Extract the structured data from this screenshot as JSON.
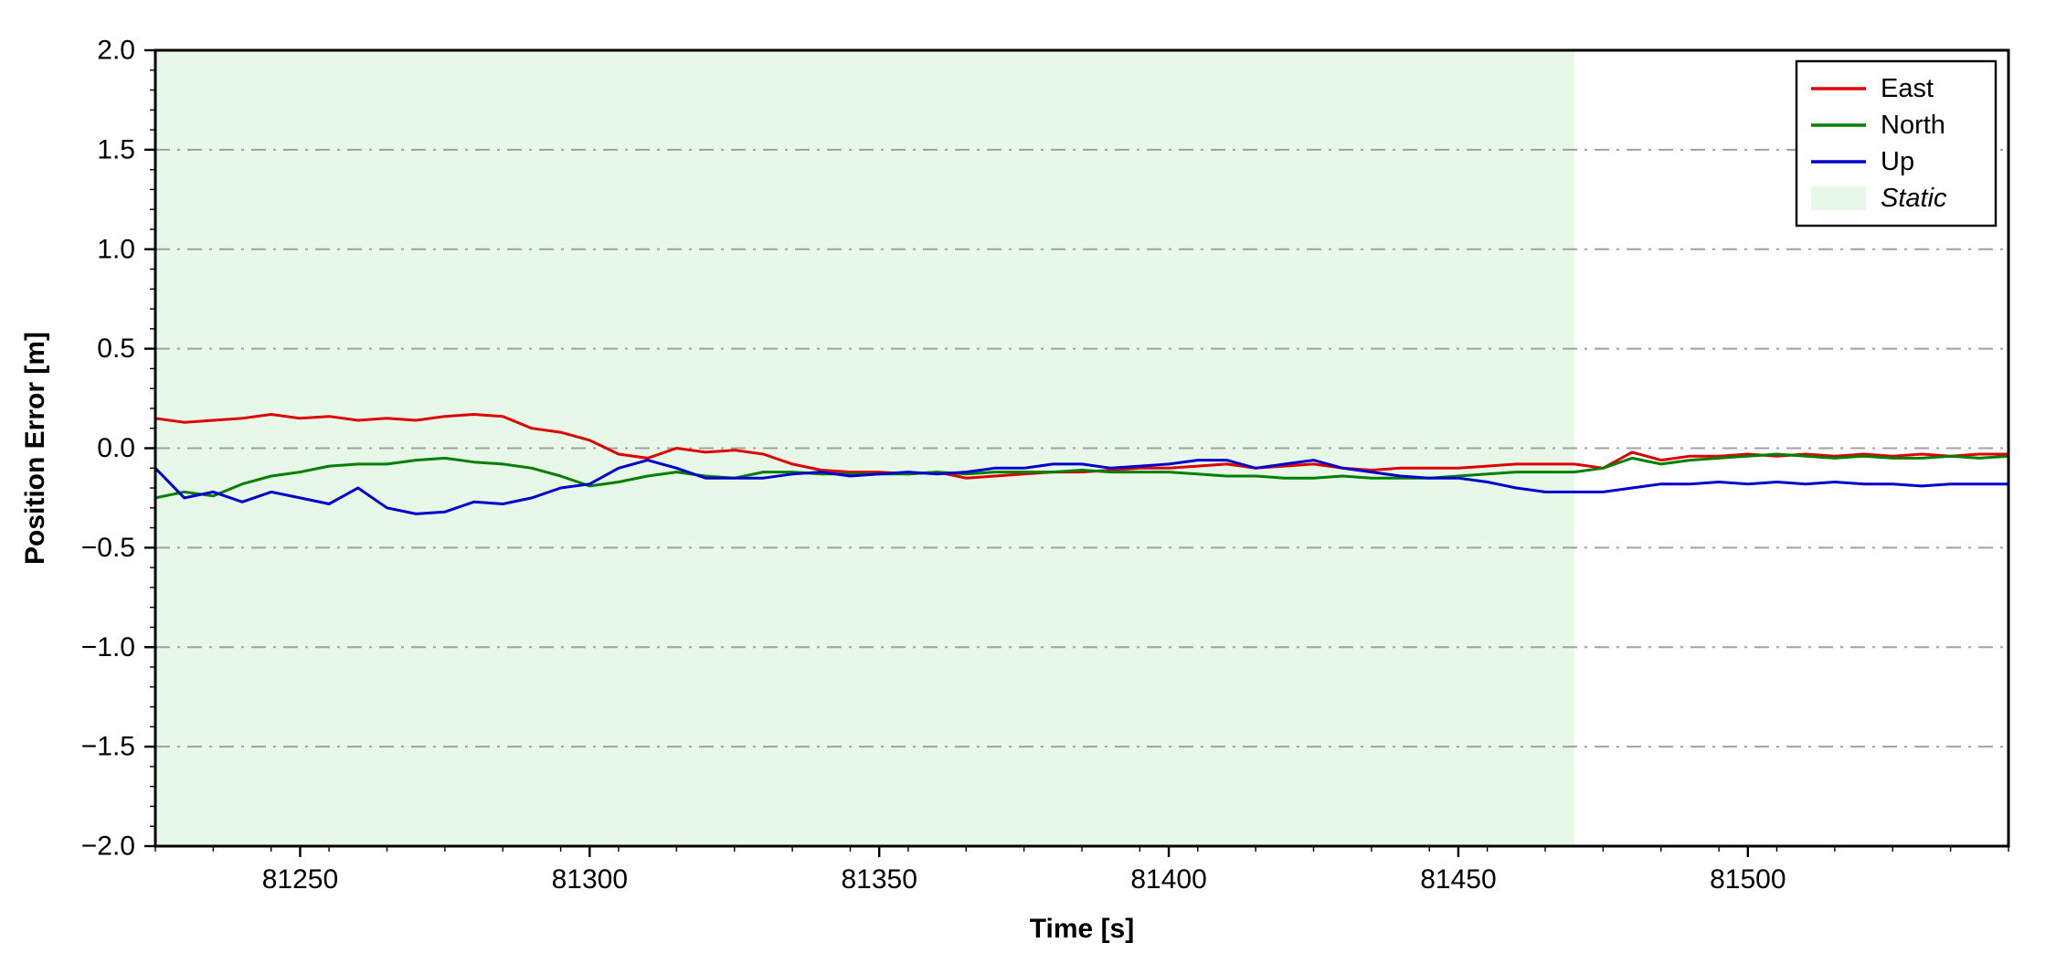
{
  "page": {
    "background": "#ffffff"
  },
  "chart_data": {
    "type": "line",
    "title": "",
    "xlabel": "Time [s]",
    "ylabel": "Position Error [m]",
    "xlim": [
      81225,
      81545
    ],
    "ylim": [
      -2.0,
      2.0
    ],
    "grid": {
      "on": true,
      "style": "dash-dot",
      "color": "#a0a0a0",
      "values": [
        -1.5,
        -1.0,
        -0.5,
        0.0,
        0.5,
        1.0,
        1.5
      ]
    },
    "xticks": {
      "values": [
        81250,
        81300,
        81350,
        81400,
        81450,
        81500
      ],
      "labels": [
        "81250",
        "81300",
        "81350",
        "81400",
        "81450",
        "81500"
      ],
      "minor_step": 10
    },
    "yticks": {
      "values": [
        2.0,
        1.5,
        1.0,
        0.5,
        0.0,
        -0.5,
        -1.0,
        -1.5,
        -2.0
      ],
      "labels": [
        "2.0",
        "1.5",
        "1.0",
        "0.5",
        "0.0",
        "−0.5",
        "−1.0",
        "−1.5",
        "−2.0"
      ],
      "minor_step": 0.1
    },
    "x": [
      81225,
      81230,
      81235,
      81240,
      81245,
      81250,
      81255,
      81260,
      81265,
      81270,
      81275,
      81280,
      81285,
      81290,
      81295,
      81300,
      81305,
      81310,
      81315,
      81320,
      81325,
      81330,
      81335,
      81340,
      81345,
      81350,
      81355,
      81360,
      81365,
      81370,
      81375,
      81380,
      81385,
      81390,
      81395,
      81400,
      81405,
      81410,
      81415,
      81420,
      81425,
      81430,
      81435,
      81440,
      81445,
      81450,
      81455,
      81460,
      81465,
      81470,
      81475,
      81480,
      81485,
      81490,
      81495,
      81500,
      81505,
      81510,
      81515,
      81520,
      81525,
      81530,
      81535,
      81540,
      81545
    ],
    "series": [
      {
        "name": "East",
        "color": "#dd0000",
        "values": [
          0.15,
          0.13,
          0.14,
          0.15,
          0.17,
          0.15,
          0.16,
          0.14,
          0.15,
          0.14,
          0.16,
          0.17,
          0.16,
          0.1,
          0.08,
          0.04,
          -0.03,
          -0.05,
          0.0,
          -0.02,
          -0.01,
          -0.03,
          -0.08,
          -0.11,
          -0.12,
          -0.12,
          -0.13,
          -0.12,
          -0.15,
          -0.14,
          -0.13,
          -0.12,
          -0.12,
          -0.11,
          -0.1,
          -0.1,
          -0.09,
          -0.08,
          -0.1,
          -0.09,
          -0.08,
          -0.1,
          -0.11,
          -0.1,
          -0.1,
          -0.1,
          -0.09,
          -0.08,
          -0.08,
          -0.08,
          -0.1,
          -0.02,
          -0.06,
          -0.04,
          -0.04,
          -0.03,
          -0.04,
          -0.03,
          -0.04,
          -0.03,
          -0.04,
          -0.03,
          -0.04,
          -0.03,
          -0.03
        ]
      },
      {
        "name": "North",
        "color": "#007f00",
        "values": [
          -0.25,
          -0.22,
          -0.24,
          -0.18,
          -0.14,
          -0.12,
          -0.09,
          -0.08,
          -0.08,
          -0.06,
          -0.05,
          -0.07,
          -0.08,
          -0.1,
          -0.14,
          -0.19,
          -0.17,
          -0.14,
          -0.12,
          -0.14,
          -0.15,
          -0.12,
          -0.12,
          -0.13,
          -0.13,
          -0.13,
          -0.13,
          -0.12,
          -0.13,
          -0.12,
          -0.12,
          -0.12,
          -0.11,
          -0.12,
          -0.12,
          -0.12,
          -0.13,
          -0.14,
          -0.14,
          -0.15,
          -0.15,
          -0.14,
          -0.15,
          -0.15,
          -0.15,
          -0.14,
          -0.13,
          -0.12,
          -0.12,
          -0.12,
          -0.1,
          -0.05,
          -0.08,
          -0.06,
          -0.05,
          -0.04,
          -0.03,
          -0.04,
          -0.05,
          -0.04,
          -0.05,
          -0.05,
          -0.04,
          -0.05,
          -0.04
        ]
      },
      {
        "name": "Up",
        "color": "#0000cc",
        "values": [
          -0.1,
          -0.25,
          -0.22,
          -0.27,
          -0.22,
          -0.25,
          -0.28,
          -0.2,
          -0.3,
          -0.33,
          -0.32,
          -0.27,
          -0.28,
          -0.25,
          -0.2,
          -0.18,
          -0.1,
          -0.06,
          -0.1,
          -0.15,
          -0.15,
          -0.15,
          -0.13,
          -0.12,
          -0.14,
          -0.13,
          -0.12,
          -0.13,
          -0.12,
          -0.1,
          -0.1,
          -0.08,
          -0.08,
          -0.1,
          -0.09,
          -0.08,
          -0.06,
          -0.06,
          -0.1,
          -0.08,
          -0.06,
          -0.1,
          -0.12,
          -0.14,
          -0.15,
          -0.15,
          -0.17,
          -0.2,
          -0.22,
          -0.22,
          -0.22,
          -0.2,
          -0.18,
          -0.18,
          -0.17,
          -0.18,
          -0.17,
          -0.18,
          -0.17,
          -0.18,
          -0.18,
          -0.19,
          -0.18,
          -0.18,
          -0.18
        ]
      }
    ],
    "regions": [
      {
        "label": "Static",
        "x_start": 81225,
        "x_end": 81470,
        "color": "#e8f8e8",
        "italic": true
      }
    ],
    "legend": {
      "position": "upper-right",
      "entries": [
        {
          "label": "East",
          "type": "line",
          "color": "#dd0000",
          "italic": false
        },
        {
          "label": "North",
          "type": "line",
          "color": "#007f00",
          "italic": false
        },
        {
          "label": "Up",
          "type": "line",
          "color": "#0000cc",
          "italic": false
        },
        {
          "label": "Static",
          "type": "patch",
          "color": "#e8f8e8",
          "italic": true
        }
      ]
    }
  }
}
